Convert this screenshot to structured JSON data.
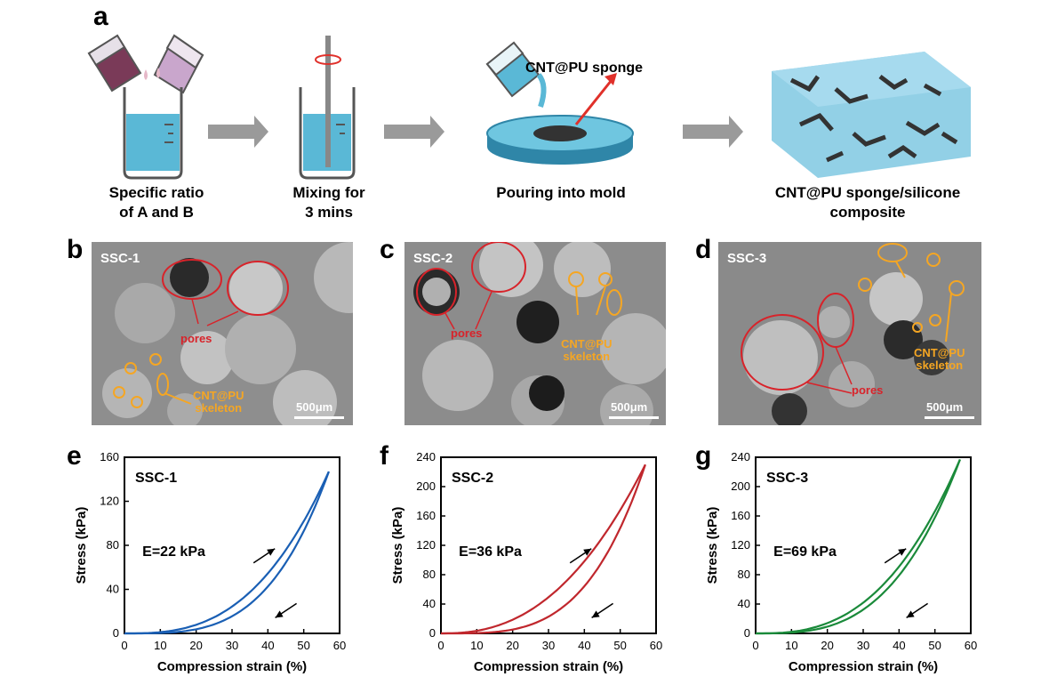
{
  "figure": {
    "panel_labels": {
      "a": "a",
      "b": "b",
      "c": "c",
      "d": "d",
      "e": "e",
      "f": "f",
      "g": "g"
    },
    "schematic": {
      "steps": [
        {
          "line1": "Specific ratio",
          "line2": "of A and B"
        },
        {
          "line1": "Mixing for",
          "line2": "3 mins"
        },
        {
          "line1": "Pouring into mold",
          "line2": ""
        },
        {
          "line1": "CNT@PU sponge/silicone",
          "line2": "composite"
        }
      ],
      "sponge_label": "CNT@PU sponge"
    },
    "sem": [
      {
        "title": "SSC-1",
        "scale": "500μm",
        "pores_label": "pores",
        "skeleton_line1": "CNT@PU",
        "skeleton_line2": "skeleton"
      },
      {
        "title": "SSC-2",
        "scale": "500μm",
        "pores_label": "pores",
        "skeleton_line1": "CNT@PU",
        "skeleton_line2": "skeleton"
      },
      {
        "title": "SSC-3",
        "scale": "500μm",
        "pores_label": "pores",
        "skeleton_line1": "CNT@PU",
        "skeleton_line2": "skeleton"
      }
    ]
  },
  "chart_data": [
    {
      "type": "line",
      "title": "SSC-1",
      "annotation": "E=22 kPa",
      "xlabel": "Compression strain (%)",
      "ylabel": "Stress (kPa)",
      "xlim": [
        0,
        60
      ],
      "ylim": [
        0,
        160
      ],
      "xticks": [
        0,
        10,
        20,
        30,
        40,
        50,
        60
      ],
      "yticks": [
        0,
        40,
        80,
        120,
        160
      ],
      "color": "#1a5fb4",
      "max_strain": 57,
      "max_stress": 147,
      "loading_exp": 2.8,
      "unloading_exp": 3.5
    },
    {
      "type": "line",
      "title": "SSC-2",
      "annotation": "E=36 kPa",
      "xlabel": "Compression strain (%)",
      "ylabel": "Stress (kPa)",
      "xlim": [
        0,
        60
      ],
      "ylim": [
        0,
        240
      ],
      "xticks": [
        0,
        10,
        20,
        30,
        40,
        50,
        60
      ],
      "yticks": [
        0,
        40,
        80,
        120,
        160,
        200,
        240
      ],
      "color": "#c0272d",
      "max_strain": 57,
      "max_stress": 230,
      "loading_exp": 2.4,
      "unloading_exp": 3.6
    },
    {
      "type": "line",
      "title": "SSC-3",
      "annotation": "E=69 kPa",
      "xlabel": "Compression strain (%)",
      "ylabel": "Stress (kPa)",
      "xlim": [
        0,
        60
      ],
      "ylim": [
        0,
        240
      ],
      "xticks": [
        0,
        10,
        20,
        30,
        40,
        50,
        60
      ],
      "yticks": [
        0,
        40,
        80,
        120,
        160,
        200,
        240
      ],
      "color": "#1a8a3a",
      "max_strain": 57,
      "max_stress": 237,
      "loading_exp": 2.7,
      "unloading_exp": 3.1
    }
  ]
}
